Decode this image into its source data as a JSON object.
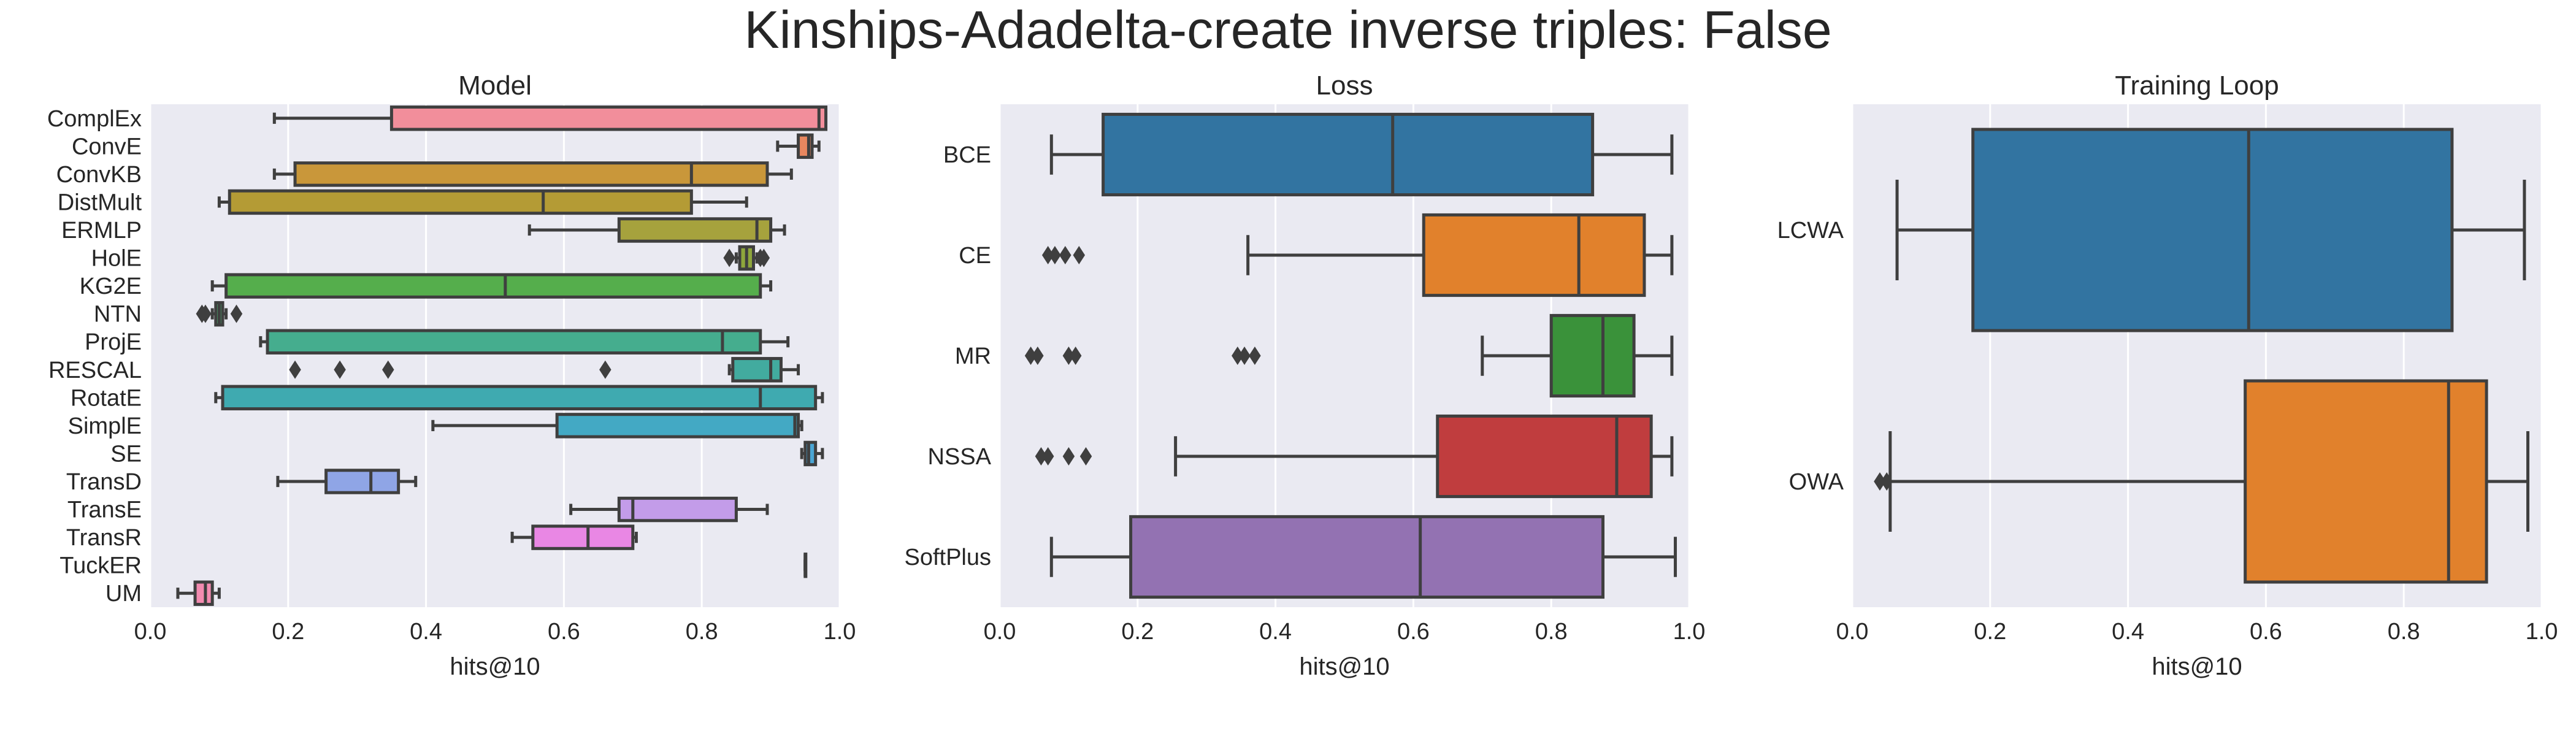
{
  "title": "Kinships-Adadelta-create inverse triples: False",
  "chart_data": [
    {
      "type": "box",
      "orientation": "horizontal",
      "title": "Model",
      "xlabel": "hits@10",
      "ylabel": "",
      "xlim": [
        0.0,
        1.0
      ],
      "xticks": [
        "0.0",
        "0.2",
        "0.4",
        "0.6",
        "0.8",
        "1.0"
      ],
      "grid": true,
      "categories": [
        "ComplEx",
        "ConvE",
        "ConvKB",
        "DistMult",
        "ERMLP",
        "HolE",
        "KG2E",
        "NTN",
        "ProjE",
        "RESCAL",
        "RotatE",
        "SimplE",
        "SE",
        "TransD",
        "TransE",
        "TransR",
        "TuckER",
        "UM"
      ],
      "boxes": [
        {
          "whislo": 0.18,
          "q1": 0.35,
          "med": 0.97,
          "q3": 0.98,
          "whishi": 0.98,
          "fliers": [],
          "color": "#f28e9b"
        },
        {
          "whislo": 0.91,
          "q1": 0.94,
          "med": 0.955,
          "q3": 0.96,
          "whishi": 0.97,
          "fliers": [],
          "color": "#e8875f"
        },
        {
          "whislo": 0.18,
          "q1": 0.21,
          "med": 0.785,
          "q3": 0.895,
          "whishi": 0.93,
          "fliers": [],
          "color": "#c9973a"
        },
        {
          "whislo": 0.1,
          "q1": 0.115,
          "med": 0.57,
          "q3": 0.785,
          "whishi": 0.865,
          "fliers": [],
          "color": "#b49b35"
        },
        {
          "whislo": 0.55,
          "q1": 0.68,
          "med": 0.88,
          "q3": 0.9,
          "whishi": 0.92,
          "fliers": [],
          "color": "#a6a23d"
        },
        {
          "whislo": 0.85,
          "q1": 0.855,
          "med": 0.865,
          "q3": 0.875,
          "whishi": 0.88,
          "fliers": [
            0.84,
            0.885,
            0.89
          ],
          "color": "#8ea63c"
        },
        {
          "whislo": 0.09,
          "q1": 0.11,
          "med": 0.515,
          "q3": 0.885,
          "whishi": 0.9,
          "fliers": [],
          "color": "#55ae4c"
        },
        {
          "whislo": 0.09,
          "q1": 0.095,
          "med": 0.1,
          "q3": 0.105,
          "whishi": 0.11,
          "fliers": [
            0.075,
            0.08,
            0.125
          ],
          "color": "#4bac70"
        },
        {
          "whislo": 0.16,
          "q1": 0.17,
          "med": 0.83,
          "q3": 0.885,
          "whishi": 0.925,
          "fliers": [],
          "color": "#45ad8e"
        },
        {
          "whislo": 0.84,
          "q1": 0.845,
          "med": 0.9,
          "q3": 0.915,
          "whishi": 0.94,
          "fliers": [
            0.21,
            0.275,
            0.345,
            0.66
          ],
          "color": "#42ab9f"
        },
        {
          "whislo": 0.095,
          "q1": 0.105,
          "med": 0.885,
          "q3": 0.965,
          "whishi": 0.975,
          "fliers": [],
          "color": "#3faab0"
        },
        {
          "whislo": 0.41,
          "q1": 0.59,
          "med": 0.935,
          "q3": 0.94,
          "whishi": 0.945,
          "fliers": [],
          "color": "#43a9c4"
        },
        {
          "whislo": 0.945,
          "q1": 0.95,
          "med": 0.955,
          "q3": 0.965,
          "whishi": 0.975,
          "fliers": [],
          "color": "#4aa5d4"
        },
        {
          "whislo": 0.185,
          "q1": 0.255,
          "med": 0.32,
          "q3": 0.36,
          "whishi": 0.385,
          "fliers": [],
          "color": "#8fa5e6"
        },
        {
          "whislo": 0.61,
          "q1": 0.68,
          "med": 0.7,
          "q3": 0.85,
          "whishi": 0.895,
          "fliers": [],
          "color": "#c39ce9"
        },
        {
          "whislo": 0.525,
          "q1": 0.555,
          "med": 0.635,
          "q3": 0.7,
          "whishi": 0.705,
          "fliers": [],
          "color": "#e987e4"
        },
        {
          "whislo": 0.95,
          "q1": 0.95,
          "med": 0.95,
          "q3": 0.95,
          "whishi": 0.95,
          "fliers": [],
          "color": "#ee88cc"
        },
        {
          "whislo": 0.04,
          "q1": 0.065,
          "med": 0.08,
          "q3": 0.09,
          "whishi": 0.1,
          "fliers": [],
          "color": "#f38bb0"
        }
      ]
    },
    {
      "type": "box",
      "orientation": "horizontal",
      "title": "Loss",
      "xlabel": "hits@10",
      "ylabel": "",
      "xlim": [
        0.0,
        1.0
      ],
      "xticks": [
        "0.0",
        "0.2",
        "0.4",
        "0.6",
        "0.8",
        "1.0"
      ],
      "grid": true,
      "categories": [
        "BCE",
        "CE",
        "MR",
        "NSSA",
        "SoftPlus"
      ],
      "boxes": [
        {
          "whislo": 0.075,
          "q1": 0.15,
          "med": 0.57,
          "q3": 0.86,
          "whishi": 0.975,
          "fliers": [],
          "color": "#3274a1"
        },
        {
          "whislo": 0.36,
          "q1": 0.615,
          "med": 0.84,
          "q3": 0.935,
          "whishi": 0.975,
          "fliers": [
            0.07,
            0.08,
            0.095,
            0.115
          ],
          "color": "#e1812c"
        },
        {
          "whislo": 0.7,
          "q1": 0.8,
          "med": 0.875,
          "q3": 0.92,
          "whishi": 0.975,
          "fliers": [
            0.045,
            0.055,
            0.1,
            0.11,
            0.345,
            0.355,
            0.37
          ],
          "color": "#3a923a"
        },
        {
          "whislo": 0.255,
          "q1": 0.635,
          "med": 0.895,
          "q3": 0.945,
          "whishi": 0.975,
          "fliers": [
            0.06,
            0.07,
            0.1,
            0.125
          ],
          "color": "#c03d3e"
        },
        {
          "whislo": 0.075,
          "q1": 0.19,
          "med": 0.61,
          "q3": 0.875,
          "whishi": 0.98,
          "fliers": [],
          "color": "#9372b2"
        }
      ]
    },
    {
      "type": "box",
      "orientation": "horizontal",
      "title": "Training Loop",
      "xlabel": "hits@10",
      "ylabel": "",
      "xlim": [
        0.0,
        1.0
      ],
      "xticks": [
        "0.0",
        "0.2",
        "0.4",
        "0.6",
        "0.8",
        "1.0"
      ],
      "grid": true,
      "categories": [
        "LCWA",
        "OWA"
      ],
      "boxes": [
        {
          "whislo": 0.065,
          "q1": 0.175,
          "med": 0.575,
          "q3": 0.87,
          "whishi": 0.975,
          "fliers": [],
          "color": "#3274a1"
        },
        {
          "whislo": 0.055,
          "q1": 0.57,
          "med": 0.865,
          "q3": 0.92,
          "whishi": 0.98,
          "fliers": [
            0.04,
            0.05
          ],
          "color": "#e1812c"
        }
      ]
    }
  ]
}
